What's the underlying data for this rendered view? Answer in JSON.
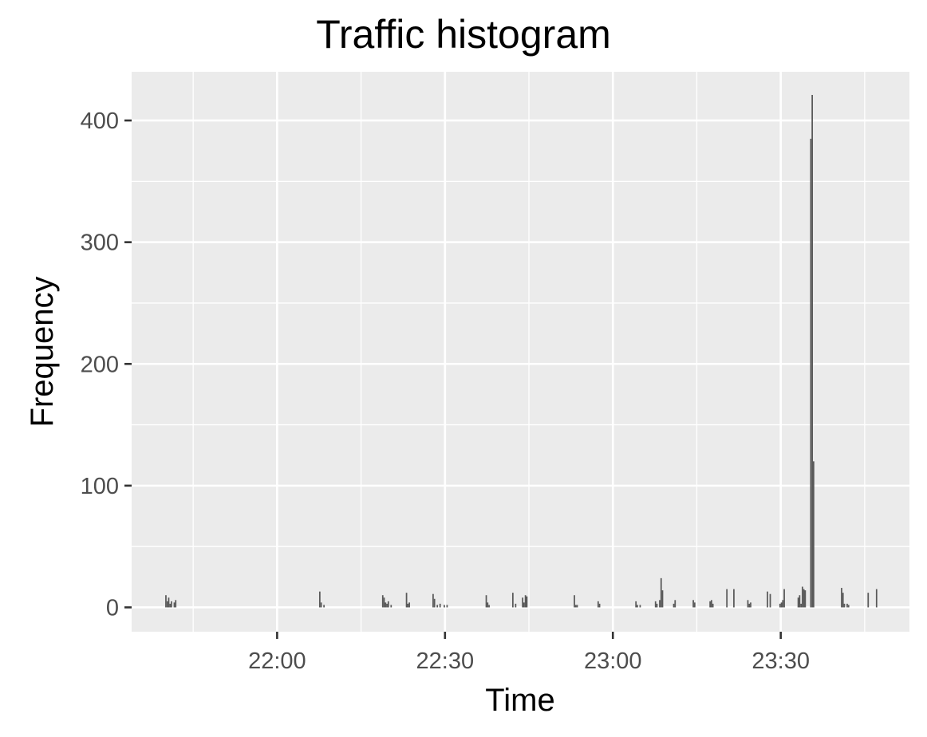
{
  "chart_data": {
    "type": "bar",
    "title": "Traffic histogram",
    "xlabel": "Time",
    "ylabel": "Frequency",
    "x_ticks": [
      "22:00",
      "22:30",
      "23:00",
      "23:30"
    ],
    "y_ticks": [
      0,
      100,
      200,
      300,
      400
    ],
    "xlim": [
      "21:34",
      "23:53"
    ],
    "ylim": [
      -20,
      440
    ],
    "grid": true,
    "colors": {
      "panel": "#ebebeb",
      "grid": "#ffffff",
      "bar": "#595959",
      "tick_text": "#4d4d4d"
    },
    "bins": [
      {
        "x": "21:40:00",
        "y": 10
      },
      {
        "x": "21:40:15",
        "y": 5
      },
      {
        "x": "21:40:30",
        "y": 8
      },
      {
        "x": "21:40:45",
        "y": 3
      },
      {
        "x": "21:41:00",
        "y": 5
      },
      {
        "x": "21:41:30",
        "y": 4
      },
      {
        "x": "21:41:45",
        "y": 6
      },
      {
        "x": "22:07:30",
        "y": 13
      },
      {
        "x": "22:07:45",
        "y": 4
      },
      {
        "x": "22:08:15",
        "y": 2
      },
      {
        "x": "22:18:45",
        "y": 10
      },
      {
        "x": "22:19:00",
        "y": 8
      },
      {
        "x": "22:19:15",
        "y": 4
      },
      {
        "x": "22:19:30",
        "y": 3
      },
      {
        "x": "22:19:45",
        "y": 5
      },
      {
        "x": "22:20:15",
        "y": 2
      },
      {
        "x": "22:23:00",
        "y": 12
      },
      {
        "x": "22:23:15",
        "y": 3
      },
      {
        "x": "22:23:30",
        "y": 4
      },
      {
        "x": "22:27:45",
        "y": 11
      },
      {
        "x": "22:28:00",
        "y": 7
      },
      {
        "x": "22:28:30",
        "y": 2
      },
      {
        "x": "22:29:00",
        "y": 3
      },
      {
        "x": "22:29:45",
        "y": 2
      },
      {
        "x": "22:30:15",
        "y": 2
      },
      {
        "x": "22:37:15",
        "y": 10
      },
      {
        "x": "22:37:30",
        "y": 4
      },
      {
        "x": "22:37:45",
        "y": 2
      },
      {
        "x": "22:42:00",
        "y": 12
      },
      {
        "x": "22:42:30",
        "y": 3
      },
      {
        "x": "22:43:45",
        "y": 8
      },
      {
        "x": "22:44:00",
        "y": 4
      },
      {
        "x": "22:44:15",
        "y": 10
      },
      {
        "x": "22:44:30",
        "y": 9
      },
      {
        "x": "22:53:00",
        "y": 10
      },
      {
        "x": "22:53:15",
        "y": 2
      },
      {
        "x": "22:53:30",
        "y": 2
      },
      {
        "x": "22:57:15",
        "y": 5
      },
      {
        "x": "22:57:30",
        "y": 3
      },
      {
        "x": "23:04:00",
        "y": 5
      },
      {
        "x": "23:04:15",
        "y": 2
      },
      {
        "x": "23:04:45",
        "y": 2
      },
      {
        "x": "23:07:30",
        "y": 5
      },
      {
        "x": "23:07:45",
        "y": 3
      },
      {
        "x": "23:08:15",
        "y": 6
      },
      {
        "x": "23:08:30",
        "y": 24
      },
      {
        "x": "23:08:45",
        "y": 14
      },
      {
        "x": "23:10:45",
        "y": 3
      },
      {
        "x": "23:11:00",
        "y": 6
      },
      {
        "x": "23:14:15",
        "y": 6
      },
      {
        "x": "23:14:30",
        "y": 4
      },
      {
        "x": "23:17:15",
        "y": 5
      },
      {
        "x": "23:17:30",
        "y": 6
      },
      {
        "x": "23:17:45",
        "y": 3
      },
      {
        "x": "23:20:15",
        "y": 15
      },
      {
        "x": "23:21:30",
        "y": 15
      },
      {
        "x": "23:24:00",
        "y": 6
      },
      {
        "x": "23:24:15",
        "y": 3
      },
      {
        "x": "23:24:30",
        "y": 4
      },
      {
        "x": "23:27:30",
        "y": 13
      },
      {
        "x": "23:28:00",
        "y": 11
      },
      {
        "x": "23:29:45",
        "y": 3
      },
      {
        "x": "23:30:00",
        "y": 4
      },
      {
        "x": "23:30:15",
        "y": 6
      },
      {
        "x": "23:30:30",
        "y": 15
      },
      {
        "x": "23:33:00",
        "y": 8
      },
      {
        "x": "23:33:15",
        "y": 10
      },
      {
        "x": "23:33:30",
        "y": 3
      },
      {
        "x": "23:33:45",
        "y": 17
      },
      {
        "x": "23:34:00",
        "y": 15
      },
      {
        "x": "23:34:15",
        "y": 14
      },
      {
        "x": "23:35:15",
        "y": 385
      },
      {
        "x": "23:35:30",
        "y": 421
      },
      {
        "x": "23:35:45",
        "y": 120
      },
      {
        "x": "23:40:45",
        "y": 16
      },
      {
        "x": "23:41:00",
        "y": 12
      },
      {
        "x": "23:41:15",
        "y": 3
      },
      {
        "x": "23:41:45",
        "y": 3
      },
      {
        "x": "23:42:00",
        "y": 2
      },
      {
        "x": "23:45:30",
        "y": 12
      },
      {
        "x": "23:47:00",
        "y": 15
      }
    ]
  }
}
